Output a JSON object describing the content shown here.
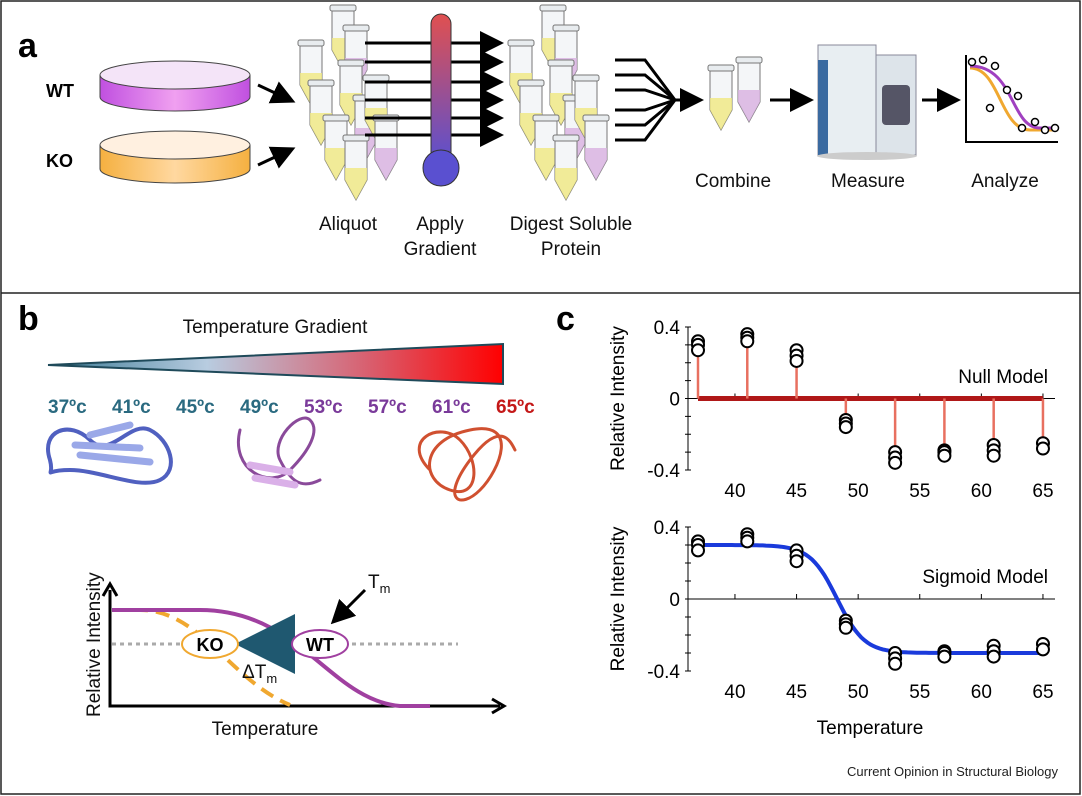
{
  "panel_a": {
    "letter": "a",
    "wt": "WT",
    "ko": "KO",
    "steps": {
      "aliquot": "Aliquot",
      "apply1": "Apply",
      "apply2": "Gradient",
      "digest1": "Digest Soluble",
      "digest2": "Protein",
      "combine": "Combine",
      "measure": "Measure",
      "analyze": "Analyze"
    }
  },
  "panel_b": {
    "letter": "b",
    "gradient_title": "Temperature Gradient",
    "temps": [
      {
        "t": "37ºc",
        "color": "#2a6a80"
      },
      {
        "t": "41ºc",
        "color": "#2a6a80"
      },
      {
        "t": "45ºc",
        "color": "#2a6a80"
      },
      {
        "t": "49ºc",
        "color": "#2a6a80"
      },
      {
        "t": "53ºc",
        "color": "#7a3a9a"
      },
      {
        "t": "57ºc",
        "color": "#7a3a9a"
      },
      {
        "t": "61ºc",
        "color": "#7a3a9a"
      },
      {
        "t": "65ºc",
        "color": "#c41818"
      }
    ],
    "ylabel": "Relative Intensity",
    "xlabel": "Temperature",
    "ko": "KO",
    "wt": "WT",
    "tm": "T",
    "tm_sub": "m",
    "dtm": "ΔT",
    "dtm_sub": "m"
  },
  "panel_c": {
    "letter": "c"
  },
  "chart_data": [
    {
      "type": "scatter",
      "title": "Null Model",
      "ylabel": "Relative Intensity",
      "xlabel": "",
      "ylim": [
        -0.4,
        0.4
      ],
      "yticks": [
        "0.4",
        "0",
        "-0.4"
      ],
      "xticks": [
        "40",
        "45",
        "50",
        "55",
        "60",
        "65"
      ],
      "x": [
        37,
        41,
        45,
        49,
        53,
        57,
        61,
        65
      ],
      "replicates": [
        [
          0.32,
          0.3,
          0.27
        ],
        [
          0.36,
          0.34,
          0.32
        ],
        [
          0.27,
          0.24,
          0.21
        ],
        [
          -0.12,
          -0.14,
          -0.16
        ],
        [
          -0.3,
          -0.33,
          -0.36
        ],
        [
          -0.29,
          -0.3,
          -0.32
        ],
        [
          -0.26,
          -0.29,
          -0.32
        ],
        [
          -0.25,
          -0.28
        ]
      ],
      "model": "null (stems to 0)"
    },
    {
      "type": "scatter",
      "title": "Sigmoid Model",
      "ylabel": "Relative Intensity",
      "xlabel": "Temperature",
      "ylim": [
        -0.4,
        0.4
      ],
      "yticks": [
        "0.4",
        "0",
        "-0.4"
      ],
      "xticks": [
        "40",
        "45",
        "50",
        "55",
        "60",
        "65"
      ],
      "x": [
        37,
        41,
        45,
        49,
        53,
        57,
        61,
        65
      ],
      "replicates": [
        [
          0.32,
          0.3,
          0.27
        ],
        [
          0.36,
          0.34,
          0.32
        ],
        [
          0.27,
          0.24,
          0.21
        ],
        [
          -0.12,
          -0.14,
          -0.16
        ],
        [
          -0.3,
          -0.33,
          -0.36
        ],
        [
          -0.29,
          -0.3,
          -0.32
        ],
        [
          -0.26,
          -0.29,
          -0.32
        ],
        [
          -0.25,
          -0.28
        ]
      ],
      "sigmoid": {
        "top": 0.3,
        "bottom": -0.3,
        "midpoint": 48.3,
        "scale": 1.1
      }
    }
  ],
  "footer": "Current Opinion in Structural Biology",
  "colors": {
    "wt": "#a040c0",
    "ko": "#f0a830",
    "stem": "#e87060",
    "null_line": "#b01818",
    "sigmoid": "#1a3adb",
    "arrow": "#1f5870"
  }
}
